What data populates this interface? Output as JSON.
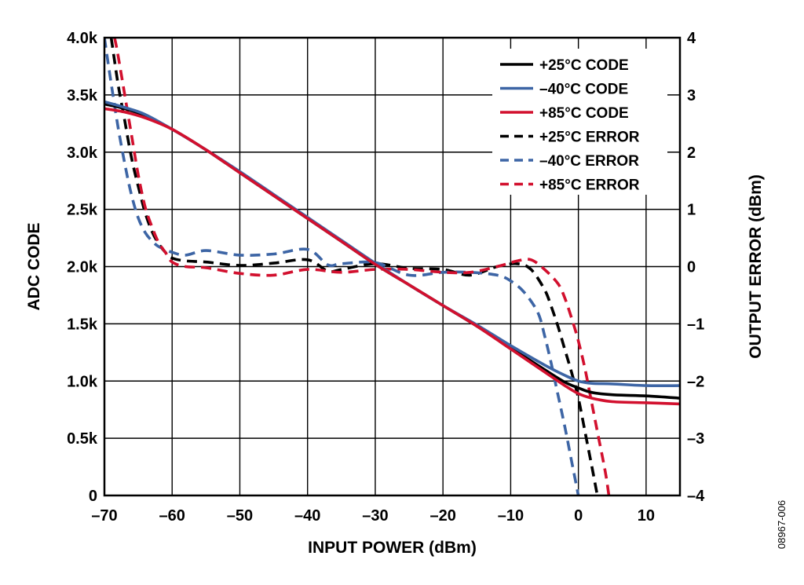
{
  "chart_data": {
    "type": "line",
    "xlabel": "INPUT POWER (dBm)",
    "ylabel": "ADC CODE",
    "y2label": "OUTPUT ERROR (dBm)",
    "figure_id": "08967-006",
    "xlim": [
      -70,
      15
    ],
    "ylim": [
      0,
      4000
    ],
    "y2lim": [
      -4,
      4
    ],
    "x_ticks": [
      -70,
      -60,
      -50,
      -40,
      -30,
      -20,
      -10,
      0,
      10
    ],
    "x_tick_labels": [
      "–70",
      "–60",
      "–50",
      "–40",
      "–30",
      "–20",
      "–10",
      "0",
      "10"
    ],
    "y_ticks": [
      0,
      500,
      1000,
      1500,
      2000,
      2500,
      3000,
      3500,
      4000
    ],
    "y_tick_labels": [
      "0",
      "0.5k",
      "1.0k",
      "1.5k",
      "2.0k",
      "2.5k",
      "3.0k",
      "3.5k",
      "4.0k"
    ],
    "y2_ticks": [
      -4,
      -3,
      -2,
      -1,
      0,
      1,
      2,
      3,
      4
    ],
    "y2_tick_labels": [
      "–4",
      "–3",
      "–2",
      "–1",
      "0",
      "1",
      "2",
      "3",
      "4"
    ],
    "grid": true,
    "legend_position": "top-right",
    "series": [
      {
        "name": "+25°C CODE",
        "axis": "left",
        "color": "#000000",
        "dash": "solid",
        "x": [
          -70,
          -67,
          -64,
          -60,
          -55,
          -50,
          -45,
          -40,
          -35,
          -30,
          -25,
          -20,
          -15,
          -10,
          -5,
          -2,
          0,
          2,
          5,
          10,
          15
        ],
        "y": [
          3420,
          3380,
          3320,
          3200,
          3020,
          2820,
          2620,
          2420,
          2220,
          2020,
          1840,
          1660,
          1480,
          1290,
          1100,
          990,
          940,
          900,
          880,
          870,
          850
        ]
      },
      {
        "name": "–40°C CODE",
        "axis": "left",
        "color": "#3d65a5",
        "dash": "solid",
        "x": [
          -70,
          -67,
          -64,
          -60,
          -55,
          -50,
          -45,
          -40,
          -35,
          -30,
          -25,
          -20,
          -15,
          -10,
          -5,
          -2,
          0,
          2,
          5,
          10,
          15
        ],
        "y": [
          3440,
          3390,
          3330,
          3200,
          3020,
          2830,
          2630,
          2430,
          2230,
          2030,
          1840,
          1660,
          1490,
          1310,
          1140,
          1050,
          1000,
          980,
          975,
          960,
          960
        ]
      },
      {
        "name": "+85°C CODE",
        "axis": "left",
        "color": "#d2102e",
        "dash": "solid",
        "x": [
          -70,
          -67,
          -64,
          -60,
          -55,
          -50,
          -45,
          -40,
          -35,
          -30,
          -25,
          -20,
          -15,
          -10,
          -5,
          -2,
          0,
          2,
          5,
          10,
          15
        ],
        "y": [
          3380,
          3350,
          3300,
          3200,
          3020,
          2820,
          2620,
          2420,
          2220,
          2020,
          1840,
          1660,
          1480,
          1280,
          1080,
          960,
          890,
          850,
          820,
          810,
          800
        ]
      },
      {
        "name": "+25°C ERROR",
        "axis": "right",
        "color": "#000000",
        "dash": "dashed",
        "x": [
          -69,
          -68,
          -67,
          -66,
          -65,
          -64,
          -63,
          -62,
          -61,
          -60,
          -58,
          -55,
          -50,
          -45,
          -40,
          -37,
          -35,
          -30,
          -25,
          -20,
          -16,
          -12,
          -9,
          -7,
          -5,
          -4,
          -3,
          -2,
          -1,
          0,
          1,
          2,
          2.8
        ],
        "y": [
          4.0,
          3.2,
          2.55,
          1.9,
          1.4,
          0.95,
          0.62,
          0.4,
          0.25,
          0.15,
          0.1,
          0.08,
          0.02,
          0.06,
          0.12,
          -0.08,
          -0.05,
          0.05,
          -0.03,
          -0.05,
          -0.15,
          0.0,
          0.05,
          -0.05,
          -0.4,
          -0.7,
          -1.05,
          -1.45,
          -1.85,
          -2.3,
          -2.9,
          -3.5,
          -4.0
        ]
      },
      {
        "name": "–40°C ERROR",
        "axis": "right",
        "color": "#3d65a5",
        "dash": "dashed",
        "x": [
          -70,
          -69,
          -68,
          -67,
          -66,
          -65,
          -64,
          -63,
          -62,
          -61,
          -60,
          -58,
          -55,
          -50,
          -45,
          -40,
          -37,
          -35,
          -30,
          -25,
          -20,
          -16,
          -12,
          -10,
          -8,
          -6,
          -5,
          -4,
          -3,
          -2,
          -1,
          0
        ],
        "y": [
          4.0,
          3.2,
          2.45,
          1.8,
          1.25,
          0.85,
          0.6,
          0.45,
          0.35,
          0.3,
          0.25,
          0.2,
          0.28,
          0.2,
          0.22,
          0.3,
          0.03,
          0.05,
          0.07,
          -0.15,
          -0.1,
          -0.1,
          -0.15,
          -0.25,
          -0.45,
          -0.8,
          -1.2,
          -1.7,
          -2.25,
          -2.8,
          -3.4,
          -4.0
        ]
      },
      {
        "name": "+85°C ERROR",
        "axis": "right",
        "color": "#d2102e",
        "dash": "dashed",
        "x": [
          -68.5,
          -68,
          -67,
          -66,
          -65,
          -64,
          -63,
          -62,
          -61,
          -60,
          -58,
          -55,
          -50,
          -45,
          -40,
          -35,
          -30,
          -25,
          -20,
          -16,
          -12,
          -9,
          -7,
          -5,
          -3,
          -2,
          -1,
          0,
          1,
          2,
          3,
          4,
          4.5
        ],
        "y": [
          4.0,
          3.7,
          3.0,
          2.3,
          1.6,
          1.05,
          0.7,
          0.42,
          0.25,
          0.08,
          0.0,
          -0.02,
          -0.12,
          -0.15,
          -0.05,
          -0.1,
          -0.05,
          -0.05,
          -0.1,
          -0.1,
          0.0,
          0.1,
          0.12,
          -0.05,
          -0.3,
          -0.55,
          -0.9,
          -1.3,
          -1.8,
          -2.4,
          -3.0,
          -3.6,
          -4.0
        ]
      }
    ]
  }
}
